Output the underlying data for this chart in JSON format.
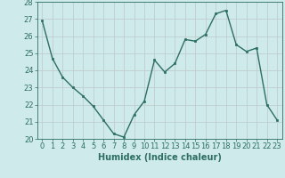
{
  "x": [
    0,
    1,
    2,
    3,
    4,
    5,
    6,
    7,
    8,
    9,
    10,
    11,
    12,
    13,
    14,
    15,
    16,
    17,
    18,
    19,
    20,
    21,
    22,
    23
  ],
  "y": [
    26.9,
    24.7,
    23.6,
    23.0,
    22.5,
    21.9,
    21.1,
    20.3,
    20.1,
    21.4,
    22.2,
    24.6,
    23.9,
    24.4,
    25.8,
    25.7,
    26.1,
    27.3,
    27.5,
    25.5,
    25.1,
    25.3,
    22.0,
    21.1
  ],
  "line_color": "#2d6e63",
  "marker_color": "#2d6e63",
  "bg_color": "#ceeaea",
  "grid_color": "#c0cece",
  "xlabel": "Humidex (Indice chaleur)",
  "ylim": [
    20,
    28
  ],
  "xlim_min": -0.5,
  "xlim_max": 23.5,
  "yticks": [
    20,
    21,
    22,
    23,
    24,
    25,
    26,
    27,
    28
  ],
  "xticks": [
    0,
    1,
    2,
    3,
    4,
    5,
    6,
    7,
    8,
    9,
    10,
    11,
    12,
    13,
    14,
    15,
    16,
    17,
    18,
    19,
    20,
    21,
    22,
    23
  ],
  "tick_color": "#2d6e63",
  "label_color": "#2d6e63",
  "font_size": 6,
  "xlabel_fontsize": 7,
  "linewidth": 1.0,
  "markersize": 2.0
}
